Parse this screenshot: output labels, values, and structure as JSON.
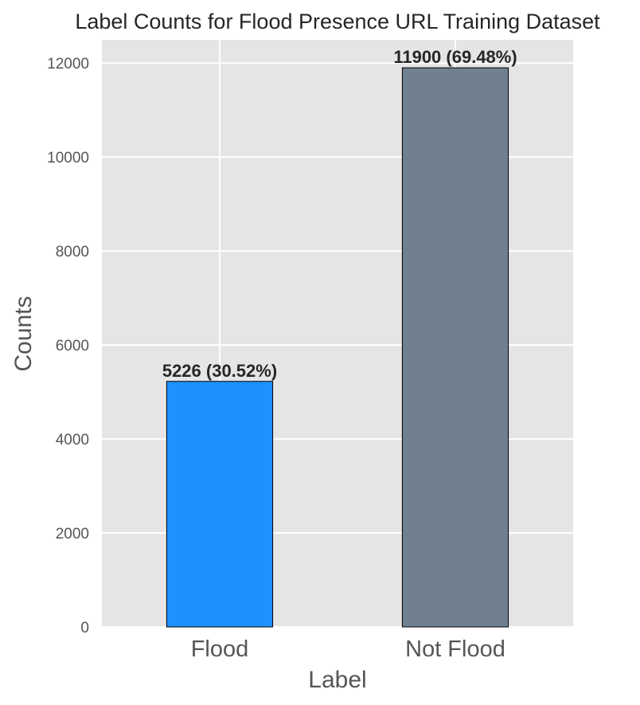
{
  "chart_data": {
    "type": "bar",
    "title": "Label Counts for Flood Presence URL Training Dataset",
    "xlabel": "Label",
    "ylabel": "Counts",
    "categories": [
      "Flood",
      "Not Flood"
    ],
    "values": [
      5226,
      11900
    ],
    "data_labels": [
      "5226 (30.52%)",
      "11900 (69.48%)"
    ],
    "colors": [
      "#1e90ff",
      "#708090"
    ],
    "ylim": [
      0,
      12495
    ],
    "yticks": [
      0,
      2000,
      4000,
      6000,
      8000,
      10000,
      12000
    ],
    "ytick_labels": [
      "0",
      "2000",
      "4000",
      "6000",
      "8000",
      "10000",
      "12000"
    ],
    "grid": true,
    "background": "#e5e5e5",
    "grid_color": "#ffffff",
    "edge_color": "#000000"
  }
}
